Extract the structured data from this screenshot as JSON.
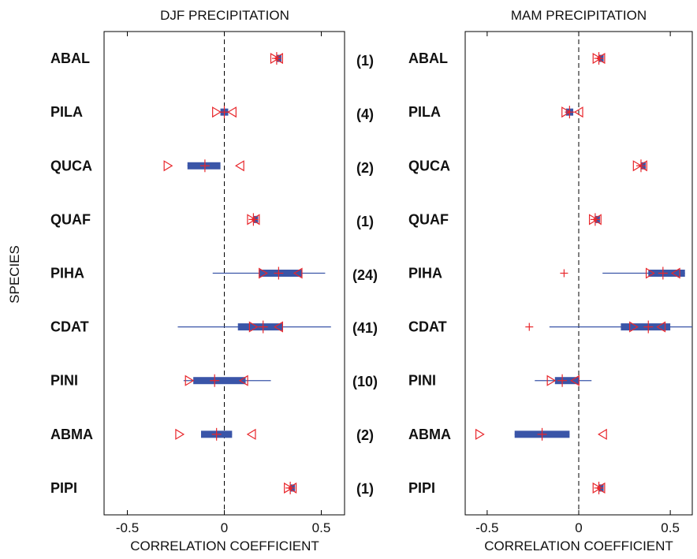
{
  "ylabel": "SPECIES",
  "colors": {
    "bar": "#3a55a8",
    "marker": "#e8262b",
    "axis": "#000000",
    "zero_line": "#000000"
  },
  "counts": [
    "(1)",
    "(4)",
    "(2)",
    "(1)",
    "(24)",
    "(41)",
    "(10)",
    "(2)",
    "(1)"
  ],
  "chart_data": [
    {
      "type": "interval",
      "title": "DJF PRECIPITATION",
      "xlabel": "CORRELATION COEFFICIENT",
      "ylabel": "SPECIES",
      "xlim": [
        -0.62,
        0.62
      ],
      "xticks": [
        -0.5,
        0,
        0.5
      ],
      "xtick_labels": [
        "-0.5",
        "0",
        "0.5"
      ],
      "zero_line": "dashed",
      "categories": [
        "ABAL",
        "PILA",
        "QUCA",
        "QUAF",
        "PIHA",
        "CDAT",
        "PINI",
        "ABMA",
        "PIPI"
      ],
      "median": [
        0.27,
        0.0,
        -0.1,
        0.15,
        0.28,
        0.2,
        -0.05,
        -0.04,
        0.34
      ],
      "iqr": [
        [
          0.27,
          0.27
        ],
        [
          -0.02,
          0.02
        ],
        [
          -0.19,
          -0.02
        ],
        [
          0.15,
          0.15
        ],
        [
          0.18,
          0.4
        ],
        [
          0.07,
          0.3
        ],
        [
          -0.16,
          0.11
        ],
        [
          -0.12,
          0.04
        ],
        [
          0.34,
          0.34
        ]
      ],
      "range": [
        [
          0.27,
          0.27
        ],
        [
          -0.02,
          0.02
        ],
        [
          -0.19,
          -0.02
        ],
        [
          0.15,
          0.15
        ],
        [
          -0.06,
          0.52
        ],
        [
          -0.24,
          0.55
        ],
        [
          -0.21,
          0.24
        ],
        [
          -0.12,
          0.04
        ],
        [
          0.34,
          0.34
        ]
      ],
      "ci_lower": [
        0.26,
        -0.04,
        -0.29,
        0.14,
        0.2,
        0.15,
        -0.18,
        -0.23,
        0.33
      ],
      "ci_upper": [
        0.28,
        0.04,
        0.08,
        0.16,
        0.38,
        0.28,
        0.1,
        0.14,
        0.35
      ],
      "outliers": [
        [],
        [],
        [],
        [],
        [],
        [],
        [],
        [],
        []
      ]
    },
    {
      "type": "interval",
      "title": "MAM PRECIPITATION",
      "xlabel": "CORRELATION COEFFICIENT",
      "ylabel": "",
      "xlim": [
        -0.62,
        0.62
      ],
      "xticks": [
        -0.5,
        0,
        0.5
      ],
      "xtick_labels": [
        "-0.5",
        "0",
        "0.5"
      ],
      "zero_line": "dashed",
      "categories": [
        "ABAL",
        "PILA",
        "QUCA",
        "QUAF",
        "PIHA",
        "CDAT",
        "PINI",
        "ABMA",
        "PIPI"
      ],
      "median": [
        0.11,
        -0.05,
        0.34,
        0.09,
        0.46,
        0.38,
        -0.09,
        -0.2,
        0.11
      ],
      "iqr": [
        [
          0.11,
          0.11
        ],
        [
          -0.07,
          -0.03
        ],
        [
          0.34,
          0.34
        ],
        [
          0.09,
          0.09
        ],
        [
          0.38,
          0.58
        ],
        [
          0.23,
          0.5
        ],
        [
          -0.13,
          0.0
        ],
        [
          -0.35,
          -0.05
        ],
        [
          0.11,
          0.11
        ]
      ],
      "range": [
        [
          0.11,
          0.11
        ],
        [
          -0.07,
          -0.03
        ],
        [
          0.34,
          0.34
        ],
        [
          0.09,
          0.09
        ],
        [
          0.13,
          0.58
        ],
        [
          -0.16,
          0.62
        ],
        [
          -0.24,
          0.07
        ],
        [
          -0.35,
          -0.05
        ],
        [
          0.11,
          0.11
        ]
      ],
      "ci_lower": [
        0.1,
        -0.07,
        0.32,
        0.08,
        0.39,
        0.3,
        -0.15,
        -0.54,
        0.1
      ],
      "ci_upper": [
        0.12,
        0.0,
        0.35,
        0.1,
        0.53,
        0.45,
        -0.02,
        0.13,
        0.12
      ],
      "outliers": [
        [],
        [],
        [],
        [],
        [
          -0.08
        ],
        [
          -0.27
        ],
        [],
        [],
        []
      ]
    }
  ]
}
